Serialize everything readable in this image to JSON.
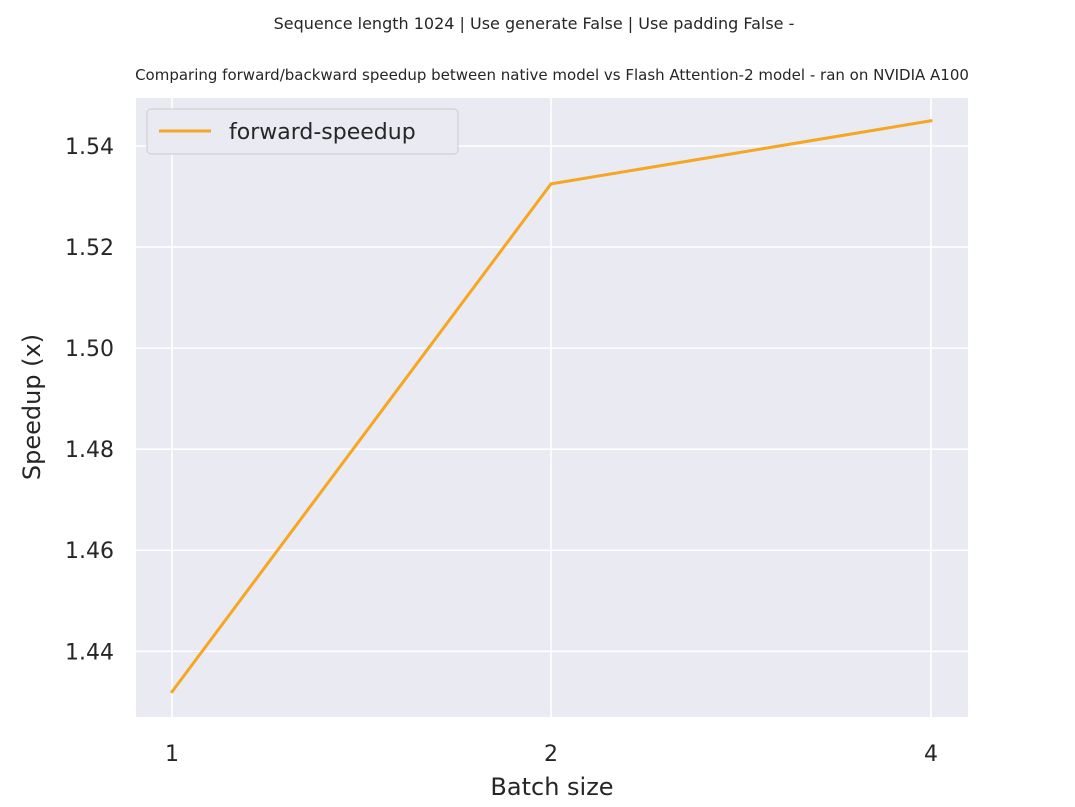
{
  "chart_data": {
    "type": "line",
    "suptitle": "Sequence length 1024 | Use generate False | Use padding False -",
    "title": "Comparing forward/backward speedup between native model vs Flash Attention-2 model - ran on NVIDIA A100",
    "xlabel": "Batch size",
    "ylabel": "Speedup (x)",
    "categories": [
      "1",
      "2",
      "4"
    ],
    "series": [
      {
        "name": "forward-speedup",
        "color": "#f5a623",
        "values": [
          1.432,
          1.5325,
          1.545
        ]
      }
    ],
    "ylim": [
      1.427,
      1.5495
    ],
    "yticks": [
      1.44,
      1.46,
      1.48,
      1.5,
      1.52,
      1.54
    ],
    "ytick_labels": [
      "1.44",
      "1.46",
      "1.48",
      "1.50",
      "1.52",
      "1.54"
    ],
    "grid": true,
    "legend_position": "upper-left",
    "background": "#eaeaf2",
    "grid_color": "#ffffff"
  }
}
